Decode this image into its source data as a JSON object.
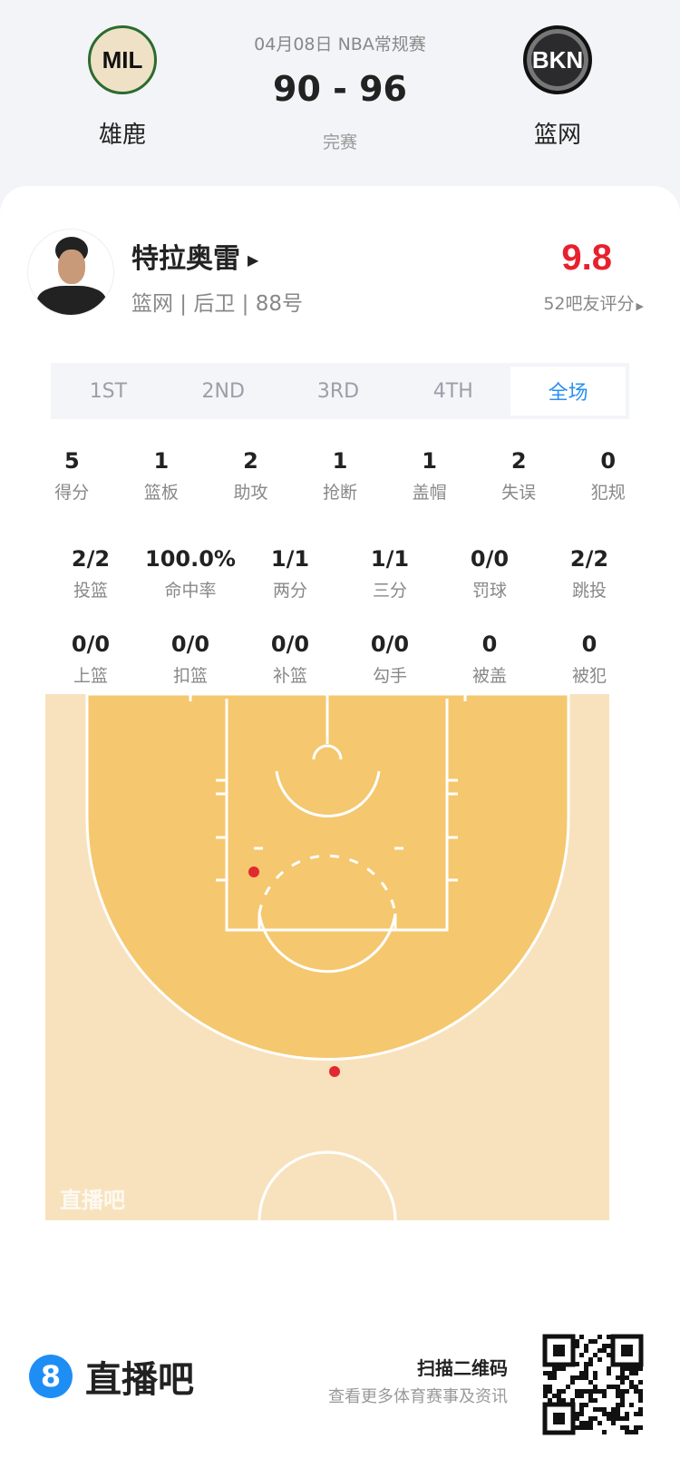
{
  "match": {
    "date_league": "04月08日 NBA常规赛",
    "score": "90 - 96",
    "status": "完赛",
    "home": {
      "abbr": "MIL",
      "name": "雄鹿"
    },
    "away": {
      "abbr": "BKN",
      "name": "篮网"
    }
  },
  "player": {
    "name": "特拉奥雷",
    "info": "篮网 | 后卫 | 88号",
    "rating": "9.8",
    "rating_count": "52吧友评分"
  },
  "tabs": [
    "1ST",
    "2ND",
    "3RD",
    "4TH",
    "全场"
  ],
  "active_tab": "全场",
  "stats_row1": [
    {
      "v": "5",
      "l": "得分"
    },
    {
      "v": "1",
      "l": "篮板"
    },
    {
      "v": "2",
      "l": "助攻"
    },
    {
      "v": "1",
      "l": "抢断"
    },
    {
      "v": "1",
      "l": "盖帽"
    },
    {
      "v": "2",
      "l": "失误"
    },
    {
      "v": "0",
      "l": "犯规"
    }
  ],
  "stats_row2": [
    {
      "v": "2/2",
      "l": "投篮"
    },
    {
      "v": "100.0%",
      "l": "命中率"
    },
    {
      "v": "1/1",
      "l": "两分"
    },
    {
      "v": "1/1",
      "l": "三分"
    },
    {
      "v": "0/0",
      "l": "罚球"
    },
    {
      "v": "2/2",
      "l": "跳投"
    }
  ],
  "stats_row3": [
    {
      "v": "0/0",
      "l": "上篮"
    },
    {
      "v": "0/0",
      "l": "扣篮"
    },
    {
      "v": "0/0",
      "l": "补篮"
    },
    {
      "v": "0/0",
      "l": "勾手"
    },
    {
      "v": "0",
      "l": "被盖"
    },
    {
      "v": "0",
      "l": "被犯"
    }
  ],
  "court": {
    "watermark": "直播吧",
    "shots": [
      {
        "result": "made",
        "type": "two"
      },
      {
        "result": "made",
        "type": "three"
      }
    ]
  },
  "footer": {
    "brand": "直播吧",
    "brand_icon": "8",
    "scan_title": "扫描二维码",
    "scan_sub": "查看更多体育赛事及资讯"
  },
  "colors": {
    "rating": "#e8202e",
    "accent": "#2a8ff0",
    "court_inner": "#f5c76e",
    "court_outer": "#f8e2bd",
    "shot": "#e02a2f"
  }
}
